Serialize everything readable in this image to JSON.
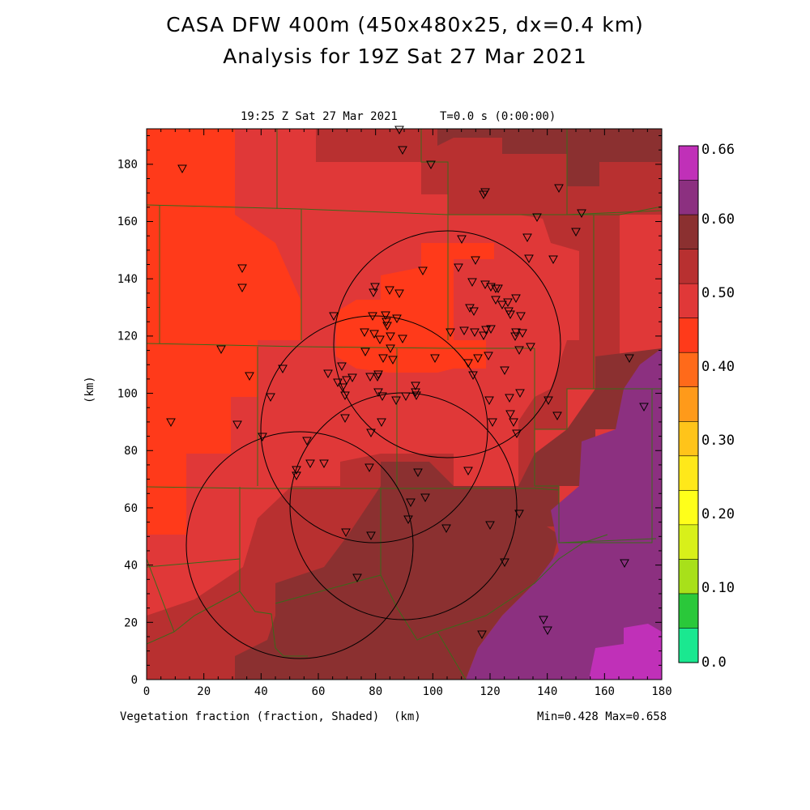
{
  "title_line1": "CASA DFW 400m (450x480x25, dx=0.4 km)",
  "title_line2": "Analysis for 19Z Sat 27 Mar 2021",
  "plot_time": "19:25 Z Sat 27 Mar 2021",
  "plot_t": "T=0.0 s (0:00:00)",
  "y_axis_label": "(km)",
  "x_axis_unit": "(km)",
  "field_label": "Vegetation fraction (fraction, Shaded)",
  "min_max": "Min=0.428 Max=0.658",
  "x_ticks": [
    "0",
    "20",
    "40",
    "60",
    "80",
    "100",
    "120",
    "140",
    "160",
    "180"
  ],
  "y_ticks": [
    "0",
    "20",
    "40",
    "60",
    "80",
    "100",
    "120",
    "140",
    "160",
    "180"
  ],
  "colorbar": {
    "labels": [
      "0.66",
      "0.60",
      "0.50",
      "0.40",
      "0.30",
      "0.20",
      "0.10",
      "0.0"
    ],
    "colors": [
      "#c030b8",
      "#8c3080",
      "#8b3030",
      "#b83030",
      "#e03838",
      "#ff3a1a",
      "#ff6a1a",
      "#ff9a1a",
      "#ffc41a",
      "#ffe81a",
      "#ffff1a",
      "#d8f01a",
      "#a8e01a",
      "#2ac83a",
      "#1ae890"
    ]
  },
  "colors": {
    "veg_043": "#ff3a1a",
    "veg_047": "#e03838",
    "veg_052": "#b83030",
    "veg_057": "#8b3030",
    "veg_063": "#8c3080",
    "veg_066": "#c030b8",
    "county_line": "#3a6a1a"
  }
}
